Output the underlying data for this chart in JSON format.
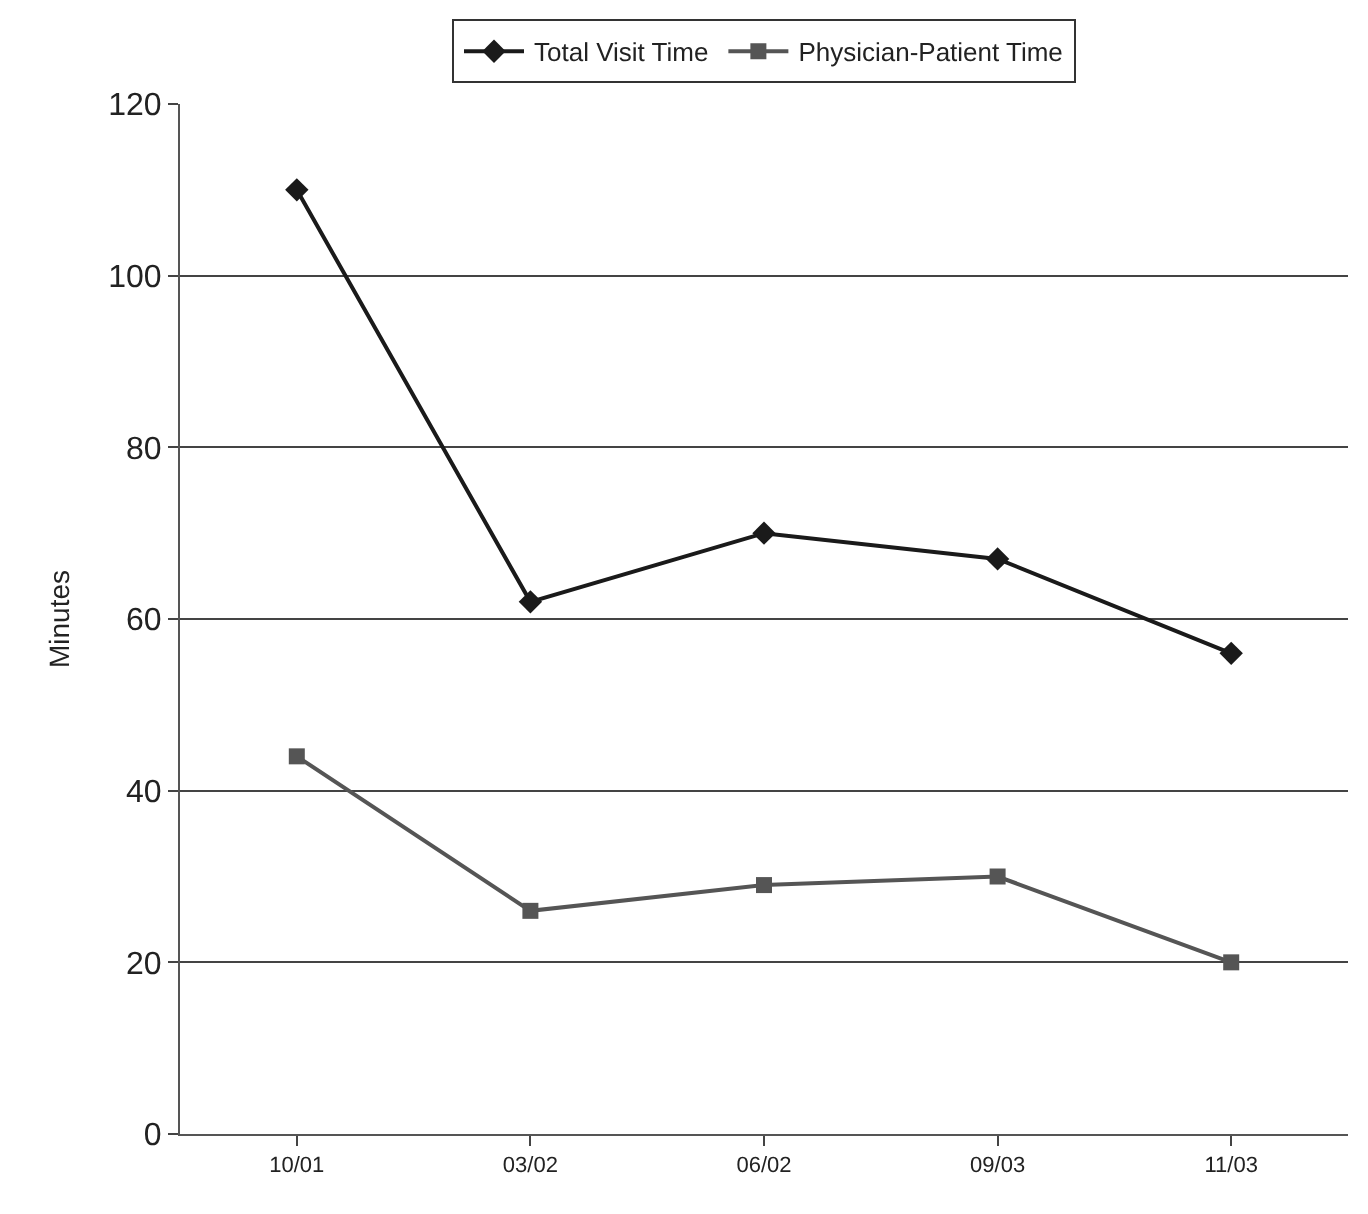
{
  "chart_data": {
    "type": "line",
    "ylabel": "Minutes",
    "categories": [
      "10/01",
      "03/02",
      "06/02",
      "09/03",
      "11/03"
    ],
    "series": [
      {
        "name": "Total Visit Time",
        "color": "#1a1a1a",
        "marker": "diamond",
        "values": [
          110,
          62,
          70,
          67,
          56
        ]
      },
      {
        "name": "Physician-Patient Time",
        "color": "#555555",
        "marker": "square",
        "values": [
          44,
          26,
          29,
          30,
          20
        ]
      }
    ],
    "ylim": [
      0,
      120
    ],
    "yticks": [
      0,
      20,
      40,
      60,
      80,
      100,
      120
    ],
    "grid": "y",
    "legend": "top"
  }
}
